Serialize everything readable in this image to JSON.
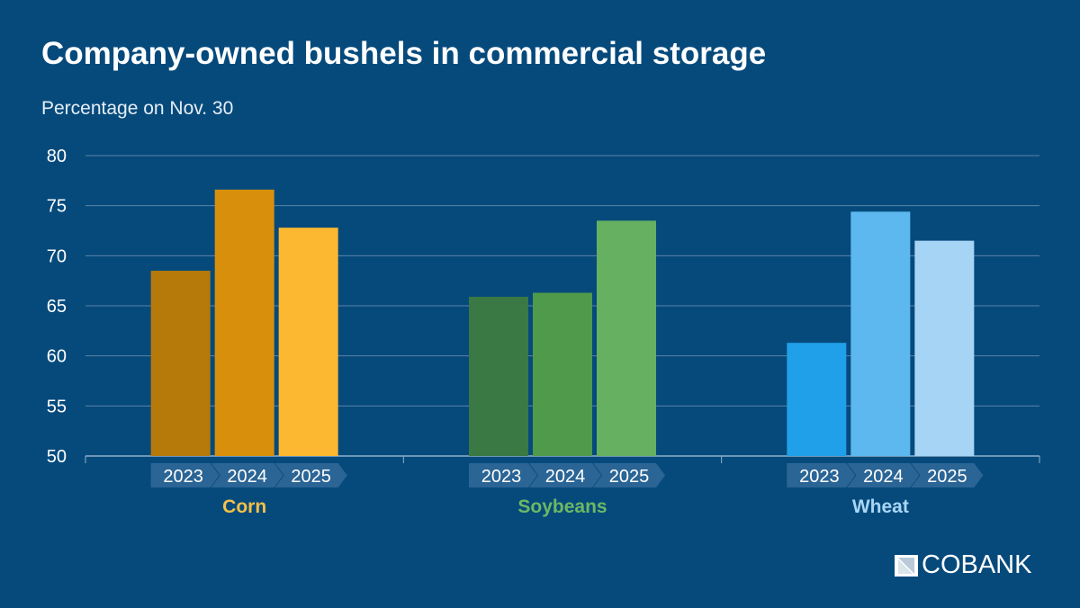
{
  "chart_data": {
    "type": "bar",
    "title": "Company-owned bushels in commercial storage",
    "subtitle": "Percentage on Nov. 30",
    "ylim": [
      50,
      80
    ],
    "yticks": [
      50,
      55,
      60,
      65,
      70,
      75,
      80
    ],
    "grid": true,
    "groups": [
      {
        "name": "Corn",
        "label_color": "#f4c047",
        "years": [
          "2023",
          "2024",
          "2025"
        ],
        "values": [
          68.5,
          76.6,
          72.8
        ],
        "colors": [
          "#b57a0a",
          "#d8900c",
          "#fbb830"
        ]
      },
      {
        "name": "Soybeans",
        "label_color": "#6cb865",
        "years": [
          "2023",
          "2024",
          "2025"
        ],
        "values": [
          65.9,
          66.3,
          73.5
        ],
        "colors": [
          "#3a7844",
          "#4f9a4b",
          "#65b061"
        ]
      },
      {
        "name": "Wheat",
        "label_color": "#a8d6f5",
        "years": [
          "2023",
          "2024",
          "2025"
        ],
        "values": [
          61.3,
          74.4,
          71.5
        ],
        "colors": [
          "#20a0e8",
          "#5cb8ee",
          "#a5d4f5"
        ]
      }
    ]
  },
  "logo": {
    "text": "COBANK"
  },
  "colors": {
    "background": "#064a7c",
    "grid": "#5b83a6",
    "chevron": "#2a6595"
  }
}
